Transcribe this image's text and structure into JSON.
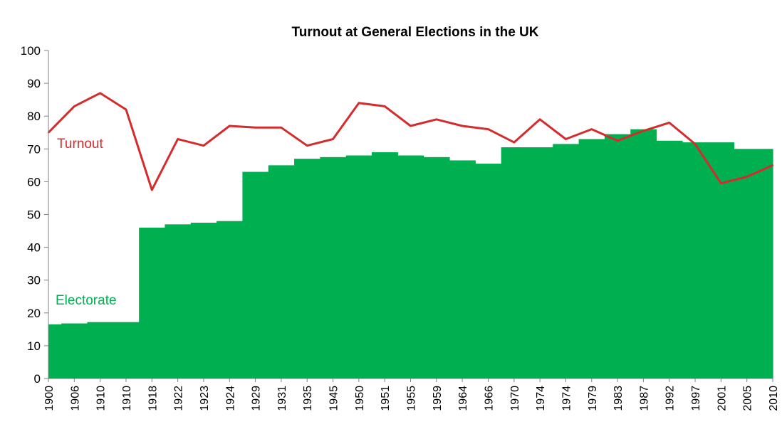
{
  "chart_data": {
    "type": "area",
    "title": "Turnout at General Elections in the UK",
    "xlabel": "",
    "ylabel": "",
    "ylim": [
      0,
      100
    ],
    "yticks": [
      0,
      10,
      20,
      30,
      40,
      50,
      60,
      70,
      80,
      90,
      100
    ],
    "grid": false,
    "categories": [
      "1900",
      "1906",
      "1910",
      "1910",
      "1918",
      "1922",
      "1923",
      "1924",
      "1929",
      "1931",
      "1935",
      "1945",
      "1950",
      "1951",
      "1955",
      "1959",
      "1964",
      "1966",
      "1970",
      "1974",
      "1974",
      "1979",
      "1983",
      "1987",
      "1992",
      "1997",
      "2001",
      "2005",
      "2010"
    ],
    "series": [
      {
        "name": "Electorate",
        "type": "stepped-area",
        "color": "#00b050",
        "values": [
          16.5,
          16.8,
          17.2,
          17.2,
          46.0,
          47.0,
          47.5,
          48.0,
          63.0,
          65.0,
          67.0,
          67.5,
          68.0,
          69.0,
          68.0,
          67.5,
          66.5,
          65.5,
          70.5,
          70.5,
          71.5,
          73.0,
          74.5,
          76.0,
          72.5,
          72.0,
          72.0,
          70.0,
          70.0
        ]
      },
      {
        "name": "Turnout",
        "type": "line",
        "color": "#d42c2c",
        "values": [
          75,
          83,
          87,
          82,
          57.5,
          73,
          71,
          77,
          76.5,
          76.5,
          71,
          73,
          84,
          83,
          77,
          79,
          77,
          76,
          72,
          79,
          73,
          76,
          72.5,
          75.5,
          78,
          71.5,
          59.5,
          61.5,
          65
        ]
      }
    ],
    "labels": {
      "turnout": "Turnout",
      "electorate": "Electorate"
    }
  }
}
